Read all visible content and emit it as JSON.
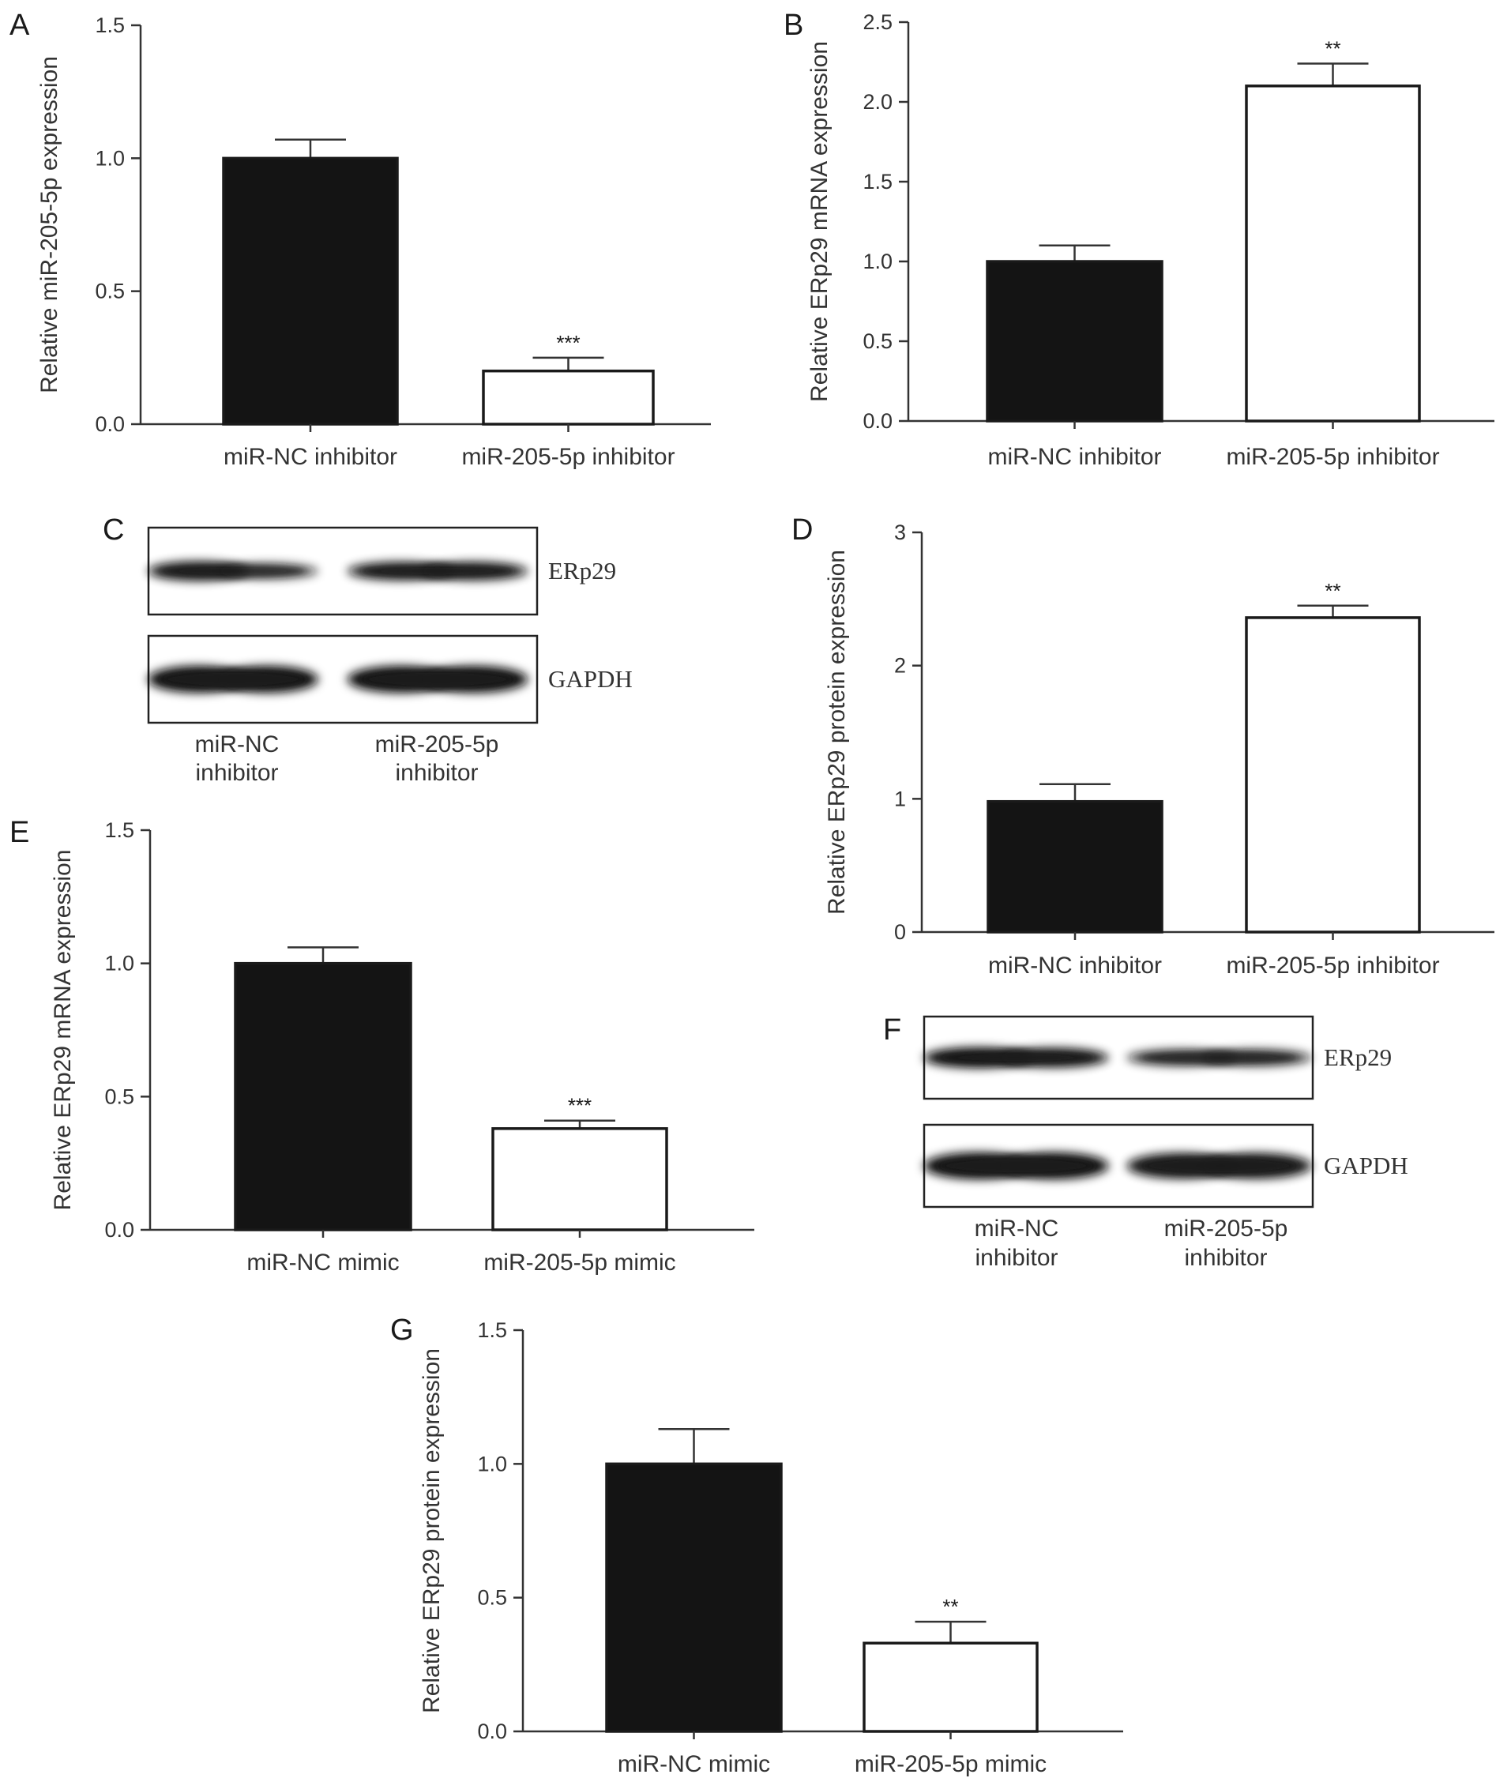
{
  "chart_data": [
    {
      "panel": "A",
      "type": "bar",
      "ylabel": "Relative miR-205-5p expression",
      "categories": [
        "miR-NC inhibitor",
        "miR-205-5p inhibitor"
      ],
      "values": [
        1.0,
        0.2
      ],
      "errors": [
        0.07,
        0.05
      ],
      "significance": [
        "",
        "***"
      ],
      "ylim": [
        0,
        1.5
      ],
      "yticks": [
        "0.0",
        "0.5",
        "1.0",
        "1.5"
      ],
      "fills": [
        "#141414",
        "#ffffff"
      ]
    },
    {
      "panel": "B",
      "type": "bar",
      "ylabel": "Relative ERp29 mRNA expression",
      "categories": [
        "miR-NC inhibitor",
        "miR-205-5p inhibitor"
      ],
      "values": [
        1.0,
        2.1
      ],
      "errors": [
        0.1,
        0.14
      ],
      "significance": [
        "",
        "**"
      ],
      "ylim": [
        0,
        2.5
      ],
      "yticks": [
        "0.0",
        "0.5",
        "1.0",
        "1.5",
        "2.0",
        "2.5"
      ],
      "fills": [
        "#141414",
        "#ffffff"
      ]
    },
    {
      "panel": "D",
      "type": "bar",
      "ylabel": "Relative ERp29 protein expression",
      "categories": [
        "miR-NC inhibitor",
        "miR-205-5p inhibitor"
      ],
      "values": [
        0.98,
        2.36
      ],
      "errors": [
        0.13,
        0.09
      ],
      "significance": [
        "",
        "**"
      ],
      "ylim": [
        0,
        3
      ],
      "yticks": [
        "0",
        "1",
        "2",
        "3"
      ],
      "fills": [
        "#141414",
        "#ffffff"
      ]
    },
    {
      "panel": "E",
      "type": "bar",
      "ylabel": "Relative ERp29 mRNA expression",
      "categories": [
        "miR-NC mimic",
        "miR-205-5p mimic"
      ],
      "values": [
        1.0,
        0.38
      ],
      "errors": [
        0.06,
        0.03
      ],
      "significance": [
        "",
        "***"
      ],
      "ylim": [
        0,
        1.5
      ],
      "yticks": [
        "0.0",
        "0.5",
        "1.0",
        "1.5"
      ],
      "fills": [
        "#141414",
        "#ffffff"
      ]
    },
    {
      "panel": "G",
      "type": "bar",
      "ylabel": "Relative ERp29 protein expression",
      "categories": [
        "miR-NC mimic",
        "miR-205-5p mimic"
      ],
      "values": [
        1.0,
        0.33
      ],
      "errors": [
        0.13,
        0.08
      ],
      "significance": [
        "",
        "**"
      ],
      "ylim": [
        0,
        1.5
      ],
      "yticks": [
        "0.0",
        "0.5",
        "1.0",
        "1.5"
      ],
      "fills": [
        "#141414",
        "#ffffff"
      ]
    }
  ],
  "blots": [
    {
      "panel": "C",
      "rows": [
        {
          "label": "ERp29",
          "bands": [
            [
              0.9,
              0.5
            ],
            [
              0.8,
              0.8
            ]
          ]
        },
        {
          "label": "GAPDH",
          "bands": [
            [
              1.0,
              1.0
            ],
            [
              1.0,
              1.0
            ]
          ]
        }
      ],
      "lanes": [
        [
          "miR-NC",
          "inhibitor"
        ],
        [
          "miR-205-5p",
          "inhibitor"
        ]
      ]
    },
    {
      "panel": "F",
      "rows": [
        {
          "label": "ERp29",
          "bands": [
            [
              1.0,
              0.9
            ],
            [
              0.6,
              0.6
            ]
          ]
        },
        {
          "label": "GAPDH",
          "bands": [
            [
              1.0,
              1.0
            ],
            [
              0.9,
              0.9
            ]
          ]
        }
      ],
      "lanes": [
        [
          "miR-NC",
          "inhibitor"
        ],
        [
          "miR-205-5p",
          "inhibitor"
        ]
      ]
    }
  ]
}
